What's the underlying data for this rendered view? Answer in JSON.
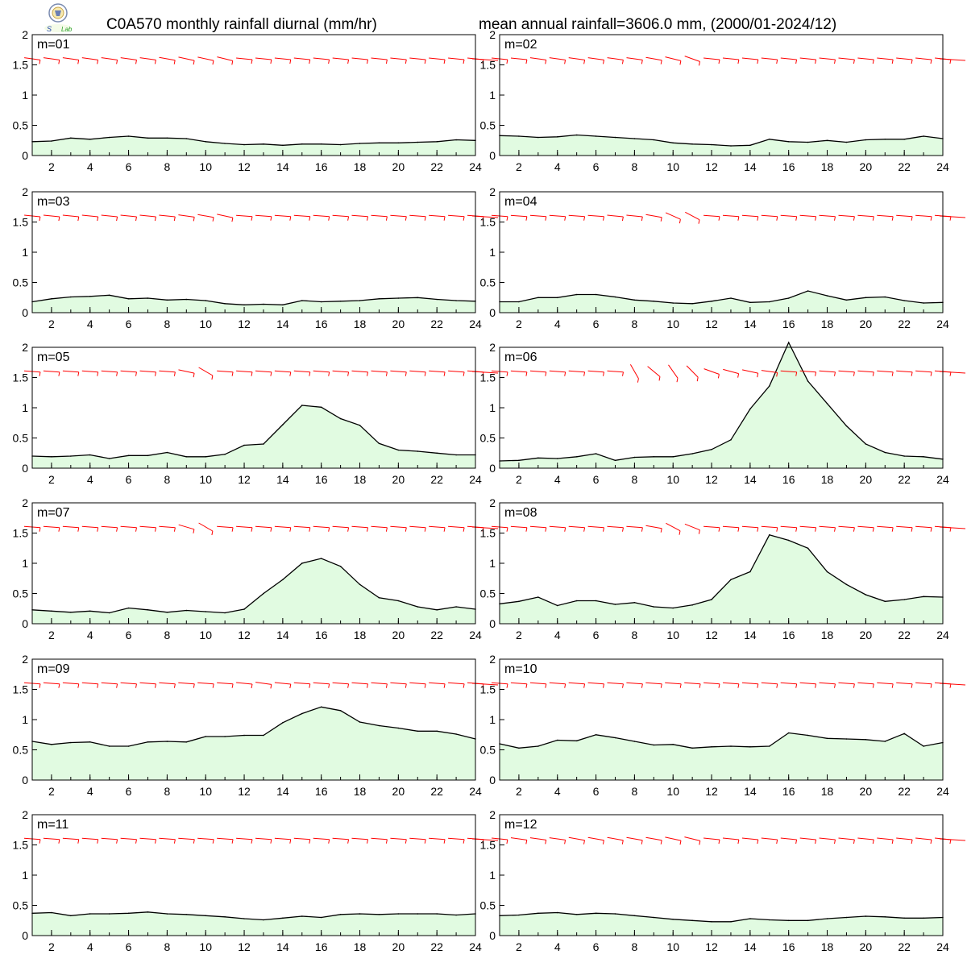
{
  "header": {
    "title_left": "C0A570 monthly rainfall diurnal (mm/hr)",
    "title_right": "mean annual rainfall=3606.0 mm, (2000/01-2024/12)",
    "logo_text": "Lab"
  },
  "colors": {
    "fill": "#e1fbe1",
    "line": "#000000",
    "wind": "#ff0000",
    "frame": "#000000"
  },
  "chart_data": {
    "type": "area",
    "layout": "12 panels, 6 rows x 2 columns",
    "x": [
      1,
      2,
      3,
      4,
      5,
      6,
      7,
      8,
      9,
      10,
      11,
      12,
      13,
      14,
      15,
      16,
      17,
      18,
      19,
      20,
      21,
      22,
      23,
      24
    ],
    "x_ticks": [
      2,
      4,
      6,
      8,
      10,
      12,
      14,
      16,
      18,
      20,
      22,
      24
    ],
    "y_ticks": [
      "0",
      "0.5",
      "1",
      "1.5",
      "2"
    ],
    "y_tick_values": [
      0,
      0.5,
      1,
      1.5,
      2
    ],
    "xlim": [
      1,
      24
    ],
    "ylim": [
      0,
      2
    ],
    "grid": false,
    "wind_barb_row_y": 1.6,
    "panels": [
      {
        "label": "m=01",
        "values": [
          0.23,
          0.24,
          0.29,
          0.27,
          0.3,
          0.32,
          0.29,
          0.29,
          0.28,
          0.23,
          0.2,
          0.18,
          0.19,
          0.17,
          0.19,
          0.19,
          0.18,
          0.2,
          0.21,
          0.21,
          0.22,
          0.23,
          0.26,
          0.25
        ],
        "barbs": [
          -8,
          -8,
          -8,
          -8,
          -8,
          -8,
          -8,
          -10,
          -12,
          -12,
          -14,
          -6,
          -6,
          -6,
          -6,
          -6,
          -6,
          -6,
          -6,
          -6,
          -6,
          -6,
          -6,
          -6
        ]
      },
      {
        "label": "m=02",
        "values": [
          0.33,
          0.32,
          0.3,
          0.31,
          0.34,
          0.32,
          0.3,
          0.28,
          0.26,
          0.21,
          0.19,
          0.18,
          0.16,
          0.17,
          0.27,
          0.23,
          0.22,
          0.25,
          0.22,
          0.26,
          0.27,
          0.27,
          0.32,
          0.28
        ],
        "barbs": [
          -6,
          -6,
          -8,
          -8,
          -8,
          -8,
          -8,
          -8,
          -10,
          -14,
          -20,
          -6,
          -6,
          -6,
          -6,
          -6,
          -6,
          -6,
          -6,
          -6,
          -6,
          -6,
          -6,
          -6
        ]
      },
      {
        "label": "m=03",
        "values": [
          0.18,
          0.23,
          0.26,
          0.27,
          0.29,
          0.23,
          0.24,
          0.21,
          0.22,
          0.2,
          0.15,
          0.13,
          0.14,
          0.13,
          0.2,
          0.18,
          0.19,
          0.2,
          0.23,
          0.24,
          0.25,
          0.22,
          0.2,
          0.19
        ],
        "barbs": [
          -6,
          -6,
          -6,
          -6,
          -6,
          -6,
          -6,
          -6,
          -8,
          -10,
          -12,
          -4,
          -4,
          -4,
          -4,
          -4,
          -4,
          -4,
          -4,
          -4,
          -4,
          -4,
          -4,
          -4
        ]
      },
      {
        "label": "m=04",
        "values": [
          0.18,
          0.18,
          0.25,
          0.25,
          0.3,
          0.3,
          0.26,
          0.21,
          0.19,
          0.16,
          0.15,
          0.19,
          0.24,
          0.17,
          0.18,
          0.24,
          0.36,
          0.28,
          0.21,
          0.25,
          0.26,
          0.2,
          0.16,
          0.17
        ],
        "barbs": [
          -4,
          -4,
          -4,
          -4,
          -4,
          -4,
          -6,
          -6,
          -10,
          -24,
          -28,
          -4,
          -4,
          -4,
          -4,
          -4,
          -4,
          -4,
          -4,
          -4,
          -4,
          -4,
          -4,
          -4
        ]
      },
      {
        "label": "m=05",
        "values": [
          0.2,
          0.19,
          0.2,
          0.22,
          0.16,
          0.21,
          0.21,
          0.26,
          0.19,
          0.19,
          0.23,
          0.38,
          0.4,
          0.72,
          1.04,
          1.01,
          0.82,
          0.71,
          0.41,
          0.3,
          0.28,
          0.25,
          0.22,
          0.22
        ],
        "barbs": [
          -4,
          -4,
          -4,
          -4,
          -4,
          -4,
          -4,
          -4,
          -12,
          -30,
          -4,
          -4,
          -4,
          -4,
          -4,
          -4,
          -4,
          -4,
          -4,
          -4,
          -4,
          -4,
          -4,
          -4
        ]
      },
      {
        "label": "m=06",
        "values": [
          0.12,
          0.13,
          0.17,
          0.16,
          0.19,
          0.24,
          0.13,
          0.18,
          0.19,
          0.19,
          0.24,
          0.31,
          0.47,
          0.98,
          1.36,
          2.08,
          1.44,
          1.07,
          0.7,
          0.4,
          0.26,
          0.2,
          0.19,
          0.15
        ],
        "barbs": [
          -4,
          -4,
          -4,
          -4,
          -4,
          -4,
          -4,
          -60,
          -40,
          -55,
          -45,
          -20,
          -15,
          -12,
          -8,
          -4,
          -4,
          -4,
          -4,
          -4,
          -4,
          -4,
          -4,
          -4
        ]
      },
      {
        "label": "m=07",
        "values": [
          0.23,
          0.21,
          0.19,
          0.21,
          0.18,
          0.26,
          0.23,
          0.19,
          0.22,
          0.2,
          0.18,
          0.24,
          0.5,
          0.73,
          1.0,
          1.08,
          0.95,
          0.65,
          0.43,
          0.38,
          0.28,
          0.23,
          0.28,
          0.24
        ],
        "barbs": [
          -4,
          -4,
          -4,
          -4,
          -4,
          -4,
          -4,
          -4,
          -16,
          -30,
          -4,
          -4,
          -4,
          -4,
          -4,
          -4,
          -4,
          -4,
          -4,
          -4,
          -4,
          -4,
          -4,
          -4
        ]
      },
      {
        "label": "m=08",
        "values": [
          0.33,
          0.37,
          0.44,
          0.3,
          0.38,
          0.38,
          0.32,
          0.35,
          0.28,
          0.26,
          0.31,
          0.4,
          0.73,
          0.86,
          1.47,
          1.38,
          1.25,
          0.86,
          0.65,
          0.48,
          0.37,
          0.4,
          0.45,
          0.44
        ],
        "barbs": [
          -4,
          -4,
          -4,
          -4,
          -4,
          -4,
          -4,
          -4,
          -10,
          -28,
          -22,
          -4,
          -4,
          -4,
          -4,
          -4,
          -4,
          -4,
          -4,
          -4,
          -4,
          -4,
          -4,
          -4
        ]
      },
      {
        "label": "m=09",
        "values": [
          0.64,
          0.59,
          0.62,
          0.63,
          0.56,
          0.56,
          0.63,
          0.64,
          0.63,
          0.72,
          0.72,
          0.74,
          0.74,
          0.95,
          1.1,
          1.21,
          1.15,
          0.96,
          0.9,
          0.86,
          0.81,
          0.81,
          0.76,
          0.68
        ],
        "barbs": [
          -4,
          -4,
          -4,
          -4,
          -4,
          -4,
          -4,
          -4,
          -4,
          -4,
          -4,
          -6,
          -8,
          -6,
          -4,
          -4,
          -4,
          -4,
          -4,
          -4,
          -4,
          -4,
          -4,
          -4
        ]
      },
      {
        "label": "m=10",
        "values": [
          0.6,
          0.53,
          0.56,
          0.66,
          0.65,
          0.75,
          0.7,
          0.64,
          0.58,
          0.59,
          0.53,
          0.55,
          0.56,
          0.55,
          0.56,
          0.78,
          0.74,
          0.69,
          0.68,
          0.67,
          0.64,
          0.77,
          0.56,
          0.62
        ],
        "barbs": [
          -4,
          -4,
          -4,
          -4,
          -4,
          -4,
          -4,
          -4,
          -4,
          -4,
          -4,
          -4,
          -4,
          -4,
          -4,
          -4,
          -4,
          -4,
          -4,
          -4,
          -4,
          -4,
          -4,
          -4
        ]
      },
      {
        "label": "m=11",
        "values": [
          0.37,
          0.38,
          0.33,
          0.36,
          0.36,
          0.37,
          0.39,
          0.36,
          0.35,
          0.33,
          0.31,
          0.28,
          0.26,
          0.29,
          0.32,
          0.3,
          0.35,
          0.36,
          0.35,
          0.36,
          0.36,
          0.36,
          0.34,
          0.36
        ],
        "barbs": [
          -4,
          -4,
          -4,
          -4,
          -4,
          -4,
          -4,
          -4,
          -4,
          -4,
          -4,
          -4,
          -4,
          -4,
          -4,
          -4,
          -4,
          -4,
          -4,
          -4,
          -4,
          -4,
          -4,
          -4
        ]
      },
      {
        "label": "m=12",
        "values": [
          0.33,
          0.34,
          0.37,
          0.38,
          0.35,
          0.37,
          0.36,
          0.33,
          0.3,
          0.27,
          0.25,
          0.23,
          0.23,
          0.28,
          0.26,
          0.25,
          0.25,
          0.28,
          0.3,
          0.32,
          0.31,
          0.29,
          0.29,
          0.3
        ],
        "barbs": [
          -6,
          -8,
          -8,
          -8,
          -10,
          -10,
          -10,
          -10,
          -10,
          -12,
          -14,
          -6,
          -6,
          -6,
          -6,
          -6,
          -6,
          -6,
          -6,
          -6,
          -6,
          -6,
          -6,
          -6
        ]
      }
    ]
  }
}
